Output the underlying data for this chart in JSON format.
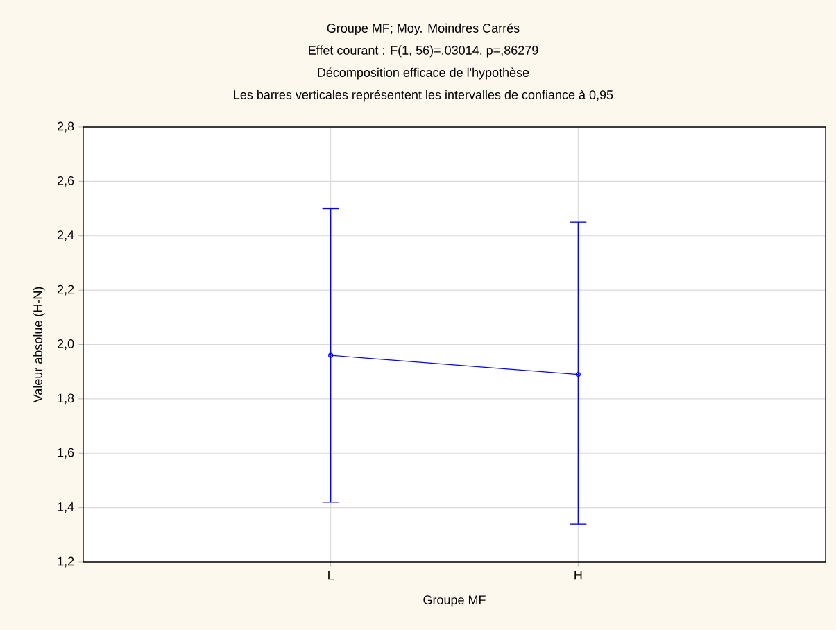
{
  "chart_data": {
    "type": "line",
    "title": "Groupe MF; Moy. Moindres Carrés",
    "subtitle": "Effet courant : F(1, 56)=,03014, p=,86279",
    "annotations": [
      "Décomposition efficace de l'hypothèse",
      "Les barres verticales représentent les intervalles de confiance à 0,95"
    ],
    "xlabel": "Groupe MF",
    "ylabel": "Valeur absolue (H-N)",
    "categories": [
      "L",
      "H"
    ],
    "series": [
      {
        "color": "#0000ff",
        "values": [
          1.96,
          1.89
        ],
        "errors": [
          [
            1.42,
            2.5
          ],
          [
            1.34,
            2.45
          ]
        ]
      }
    ],
    "ylim": [
      1.2,
      2.8
    ],
    "yticks": [
      {
        "value": 1.2,
        "label": "1,2"
      },
      {
        "value": 1.4,
        "label": "1,4"
      },
      {
        "value": 1.6,
        "label": "1,6"
      },
      {
        "value": 1.8,
        "label": "1,8"
      },
      {
        "value": 2.0,
        "label": "2,0"
      },
      {
        "value": 2.2,
        "label": "2,2"
      },
      {
        "value": 2.4,
        "label": "2,4"
      },
      {
        "value": 2.6,
        "label": "2,6"
      },
      {
        "value": 2.8,
        "label": "2,8"
      }
    ],
    "grid": true,
    "marker": "circle",
    "line_style": "solid"
  }
}
